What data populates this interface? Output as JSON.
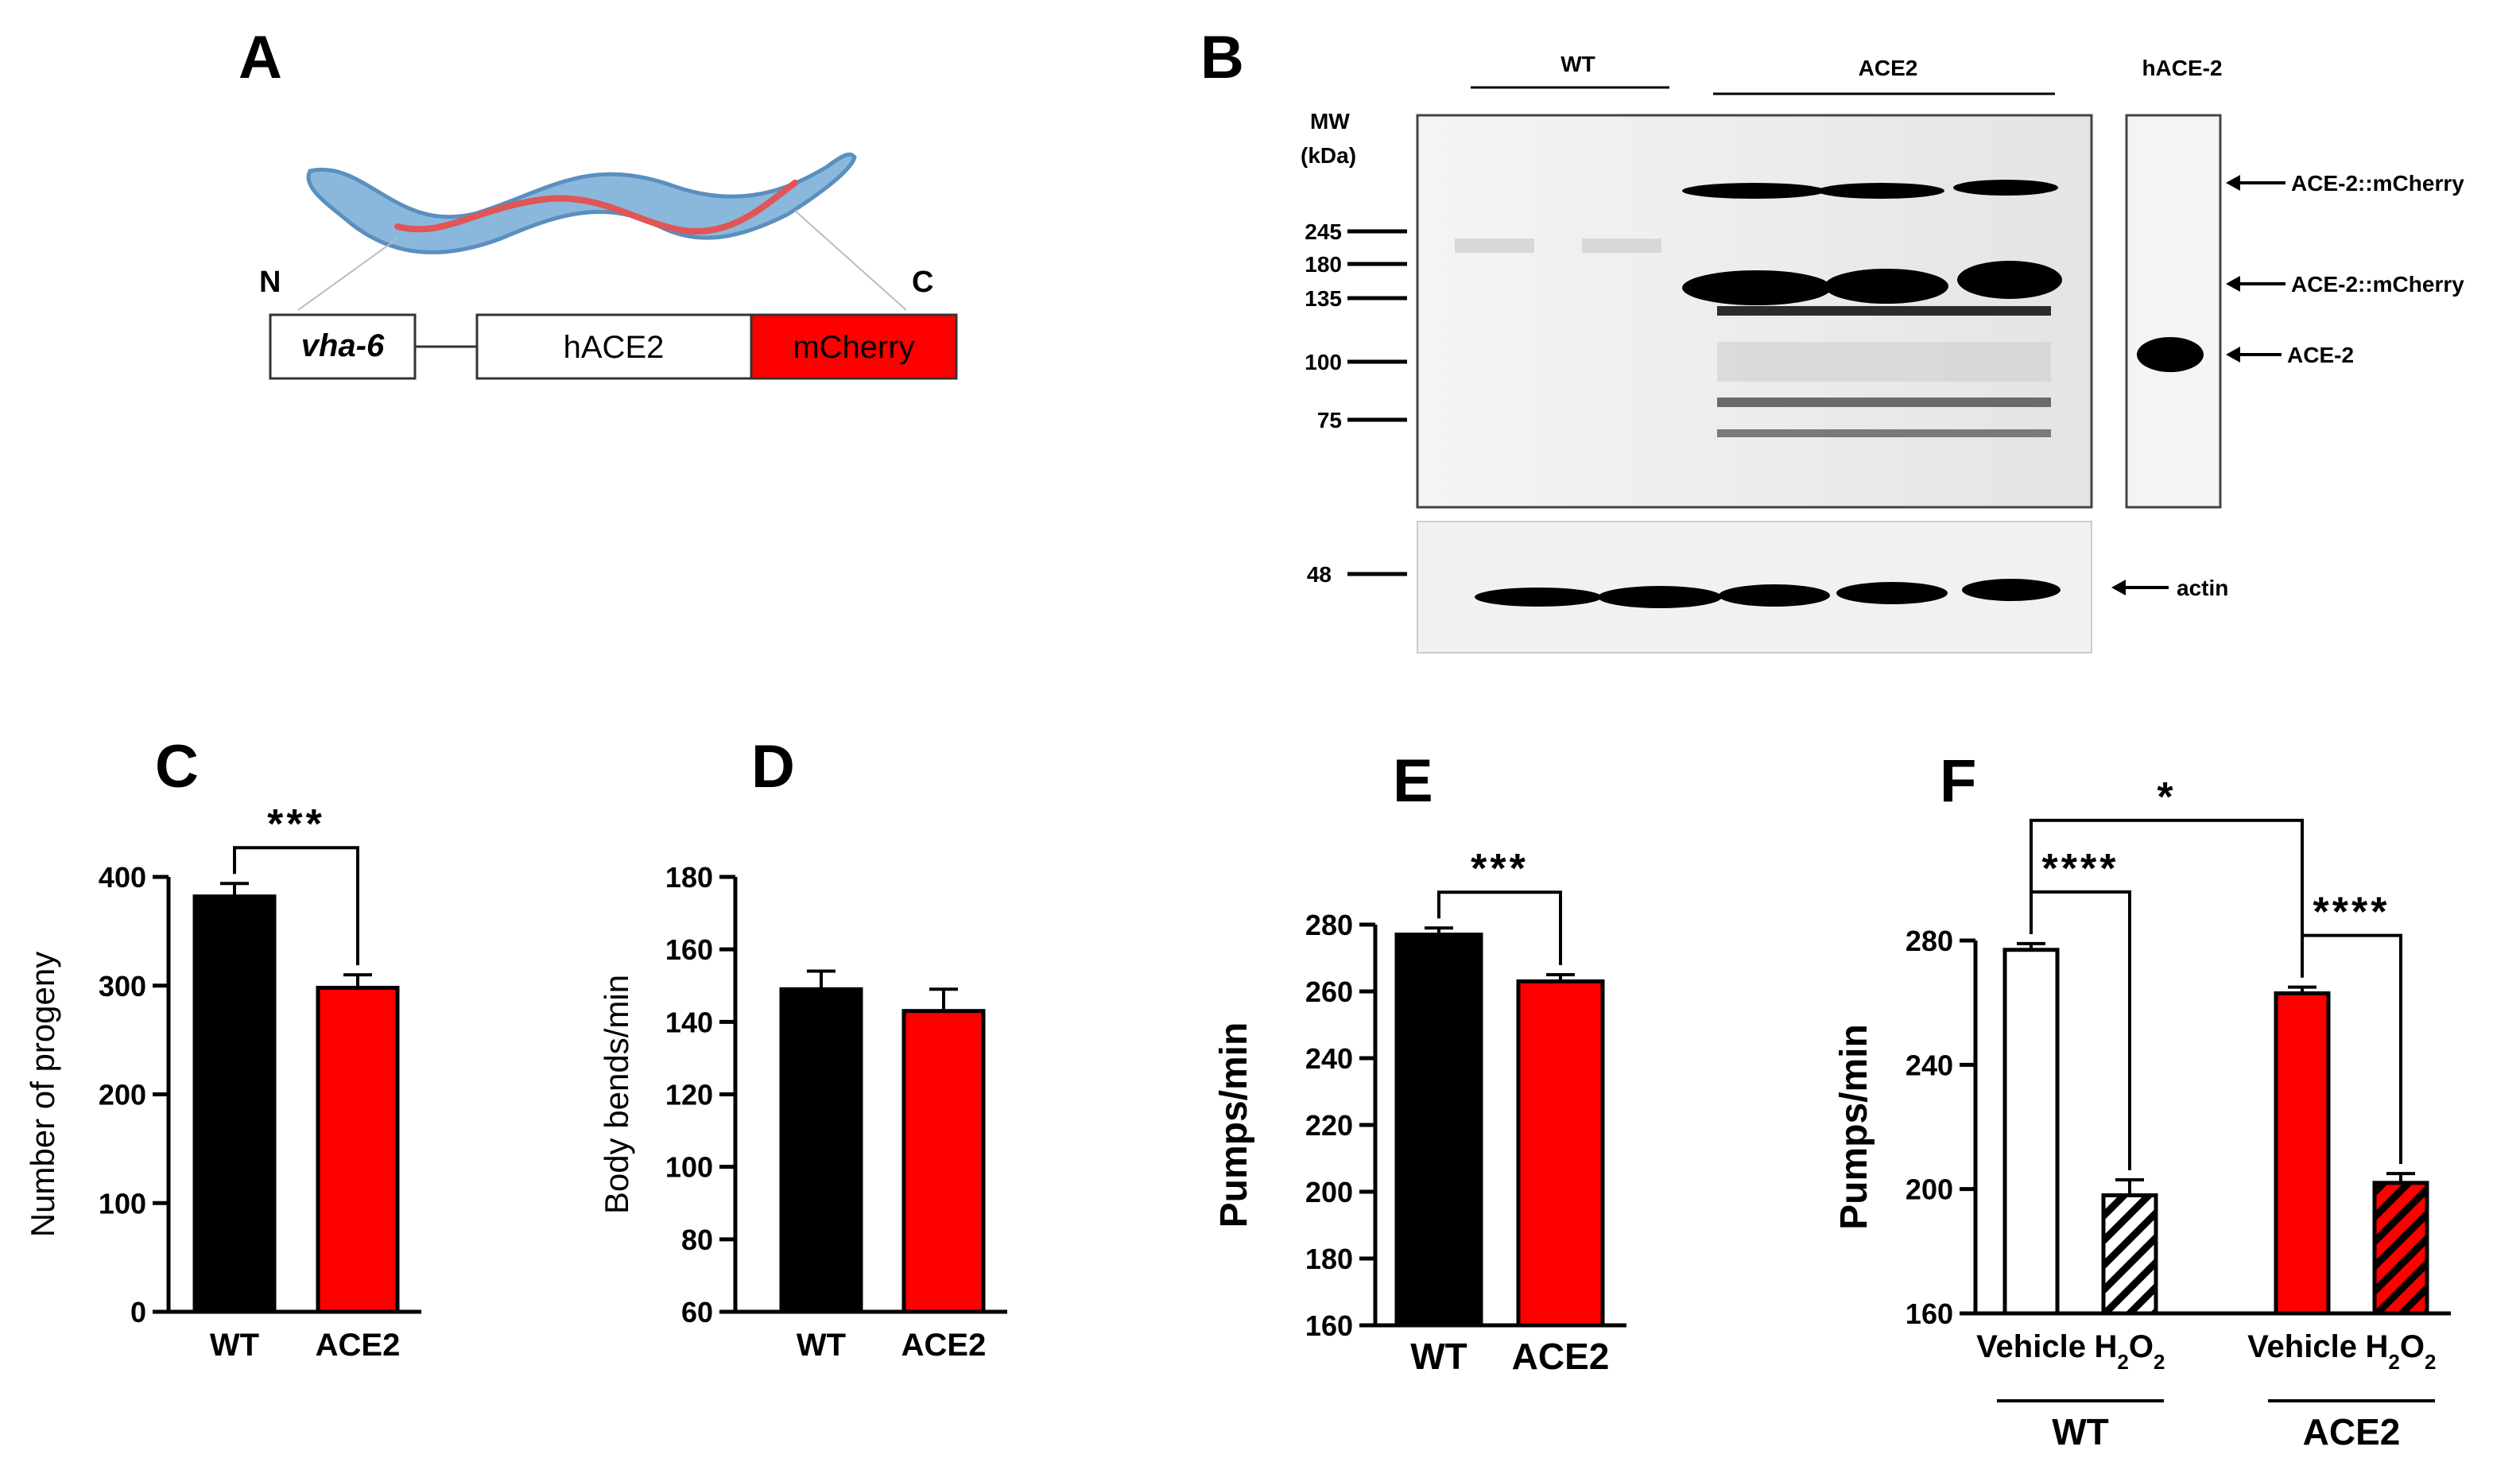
{
  "panel_labels": {
    "a": "A",
    "b": "B",
    "c": "C",
    "d": "D",
    "e": "E",
    "f": "F"
  },
  "construct": {
    "n_label": "N",
    "c_label": "C",
    "promoter": "vha-6",
    "gene": "hACE2",
    "tag": "mCherry",
    "colors": {
      "worm_body": "#8ab8dc",
      "worm_outline": "#5a8fbf",
      "intestine": "#e05555",
      "tag": "#ff0000"
    }
  },
  "western_blot": {
    "group_labels": {
      "wt": "WT",
      "ace2": "ACE2",
      "hace2": "hACE-2"
    },
    "mw_title_1": "MW",
    "mw_title_2": "(kDa)",
    "markers": [
      "245",
      "180",
      "135",
      "100",
      "75"
    ],
    "loading_marker": "48",
    "right_labels": [
      "ACE-2::mCherry",
      "ACE-2::mCherry",
      "ACE-2",
      "actin"
    ]
  },
  "chart_data": [
    {
      "panel": "C",
      "type": "bar",
      "categories": [
        "WT",
        "ACE2"
      ],
      "values": [
        382,
        298
      ],
      "errors": [
        12,
        12
      ],
      "colors": [
        "#000000",
        "#ff0000"
      ],
      "ylabel": "Number of progeny",
      "ylim": [
        0,
        400
      ],
      "yticks": [
        "0",
        "100",
        "200",
        "300",
        "400"
      ],
      "significance": "***"
    },
    {
      "panel": "D",
      "type": "bar",
      "categories": [
        "WT",
        "ACE2"
      ],
      "values": [
        149,
        143
      ],
      "errors": [
        5,
        6
      ],
      "colors": [
        "#000000",
        "#ff0000"
      ],
      "ylabel": "Body bends/min",
      "ylim": [
        60,
        180
      ],
      "yticks": [
        "60",
        "80",
        "100",
        "120",
        "140",
        "160",
        "180"
      ]
    },
    {
      "panel": "E",
      "type": "bar",
      "categories": [
        "WT",
        "ACE2"
      ],
      "values": [
        277,
        263
      ],
      "errors": [
        2,
        2
      ],
      "colors": [
        "#000000",
        "#ff0000"
      ],
      "ylabel": "Pumps/min",
      "ylim": [
        160,
        280
      ],
      "yticks": [
        "160",
        "180",
        "200",
        "220",
        "240",
        "260",
        "280"
      ],
      "significance": "***"
    },
    {
      "panel": "F",
      "type": "bar",
      "categories": [
        "Vehicle",
        "H2O2",
        "Vehicle",
        "H2O2"
      ],
      "groups": [
        "WT",
        "ACE2"
      ],
      "values": [
        277,
        198,
        263,
        202
      ],
      "errors": [
        2,
        5,
        2,
        3
      ],
      "colors": [
        "#ffffff",
        "#ffffff",
        "#ff0000",
        "#ff0000"
      ],
      "hatched": [
        false,
        true,
        false,
        true
      ],
      "ylabel": "Pumps/min",
      "ylim": [
        160,
        280
      ],
      "yticks": [
        "160",
        "200",
        "240",
        "280"
      ],
      "significance": {
        "wt_vehicle_vs_h2o2": "****",
        "ace2_vehicle_vs_h2o2": "****",
        "wt_vs_ace2_vehicle": "*"
      }
    }
  ]
}
